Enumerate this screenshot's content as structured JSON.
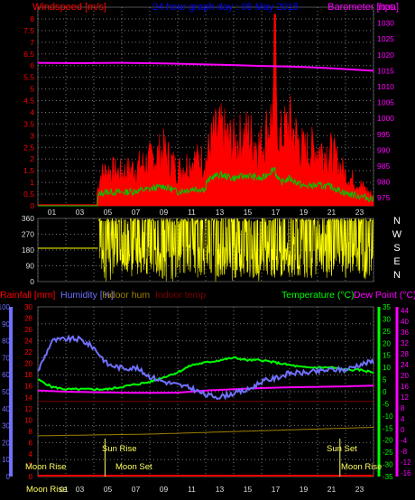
{
  "panel1": {
    "left_label": "Windspeed [m/s]",
    "title": "24 hour graph day : 05 May 2015",
    "right_label": "Barometer [hpa]"
  },
  "panel3": {
    "rain_label": "Rainfall [mm]",
    "humidity_label": "Humidity [%]",
    "indoor_hum_label": "Indoor hum",
    "indoor_temp_label": "Indoor temp",
    "temp_label": "Temperature (°C)",
    "dew_label": "Dew Point (°C)",
    "sun_rise_label": "Sun Rise",
    "sun_set_label": "Sun Set",
    "moon_rise_label": "Moon Rise",
    "moon_set_label": "Moon Set",
    "moon_rise_right_label": "Moon Rise",
    "bottom_moon_rise": "Moon Rise",
    "bottom_first_hour": "01"
  },
  "colors": {
    "wind": "#ff0000",
    "gust": "#00c800",
    "baro": "#ff00ff",
    "direction": "#ffff00",
    "humidity": "#7070ff",
    "temperature": "#00ff00",
    "dew": "#ff00ff",
    "indoor_hum": "#a08000",
    "indoor_temp": "#800000",
    "rain": "#ff0000",
    "sun": "#ffff60"
  },
  "chart_data": [
    {
      "type": "line",
      "title": "24 hour graph day : 05 May 2015",
      "x_ticks": [
        "01",
        "03",
        "05",
        "07",
        "09",
        "11",
        "13",
        "15",
        "17",
        "19",
        "21",
        "23"
      ],
      "xlim_hours": [
        0,
        24
      ],
      "ylabel": "Windspeed [m/s]",
      "ylim": [
        0,
        8.5
      ],
      "y_ticks": [
        "0",
        "0.5",
        "1",
        "1.5",
        "2",
        "2.5",
        "3",
        "3.5",
        "4",
        "4.5",
        "5",
        "5.5",
        "6",
        "6.5",
        "7",
        "7.5",
        "8"
      ],
      "y2label": "Barometer [hpa]",
      "y2lim": [
        972.5,
        1035
      ],
      "y2_ticks": [
        "975",
        "980",
        "985",
        "990",
        "995",
        "1000",
        "1005",
        "1010",
        "1015",
        "1020",
        "1025",
        "1030",
        "1035"
      ],
      "series": [
        {
          "name": "Windspeed",
          "x": [
            0,
            4,
            4.2,
            4.5,
            5,
            6,
            7,
            8,
            9,
            10,
            11,
            12,
            12.5,
            13,
            14,
            15,
            16,
            17,
            17.3,
            18,
            19,
            20,
            21,
            22,
            23,
            24
          ],
          "values": [
            0,
            0,
            0.5,
            1.3,
            1.5,
            1.4,
            1.6,
            1.9,
            2.3,
            1.5,
            1.9,
            1.9,
            2.8,
            3.1,
            2.6,
            3.0,
            2.5,
            4.2,
            2.8,
            3.4,
            2.3,
            2.4,
            2.2,
            1.3,
            0.9,
            0.4
          ]
        },
        {
          "name": "Barometer",
          "x": [
            0,
            3,
            6,
            9,
            12,
            14,
            16,
            18,
            20,
            22,
            24
          ],
          "values": [
            1017.5,
            1017.4,
            1017.5,
            1017.3,
            1017.0,
            1016.8,
            1016.5,
            1016.3,
            1016.0,
            1015.5,
            1015.0
          ]
        }
      ]
    },
    {
      "type": "scatter",
      "ylabel_right": [
        "N",
        "W",
        "S",
        "E",
        "N"
      ],
      "ylim": [
        0,
        360
      ],
      "y_ticks": [
        "0",
        "90",
        "180",
        "270",
        "360"
      ],
      "series": [
        {
          "name": "Wind direction",
          "x": [
            0,
            4.3,
            4.4,
            5,
            5.5
          ],
          "values": [
            190,
            190,
            340,
            90,
            0
          ]
        }
      ]
    },
    {
      "type": "line",
      "x_ticks": [
        "01",
        "03",
        "05",
        "07",
        "09",
        "11",
        "13",
        "15",
        "17",
        "19",
        "21",
        "23"
      ],
      "y_left_ticks_humidity": [
        "0",
        "10",
        "20",
        "30",
        "40",
        "50",
        "60",
        "70",
        "80",
        "90",
        "100"
      ],
      "y_left_ticks_rain": [
        "0",
        "2",
        "4",
        "6",
        "8",
        "10",
        "12",
        "14",
        "16",
        "18",
        "20",
        "22",
        "24",
        "26",
        "28",
        "30"
      ],
      "ylim_humidity": [
        0,
        100
      ],
      "y_temp_ticks": [
        "-35",
        "-30",
        "-25",
        "-20",
        "-15",
        "-10",
        "-5",
        "0",
        "5",
        "10",
        "15",
        "20",
        "25",
        "30",
        "35"
      ],
      "y_dew_ticks": [
        "-16",
        "-12",
        "-8",
        "-4",
        "0",
        "4",
        "8",
        "12",
        "16",
        "20",
        "24",
        "28",
        "32",
        "36",
        "40",
        "44"
      ],
      "ylim_temp": [
        -35,
        35
      ],
      "series": [
        {
          "name": "Humidity [%]",
          "x": [
            0,
            0.5,
            1,
            2,
            3,
            4,
            5,
            6,
            7,
            8,
            9,
            10,
            11,
            12,
            13,
            14,
            15,
            16,
            17,
            18,
            19,
            20,
            21,
            22,
            23,
            24
          ],
          "values": [
            62,
            71,
            80,
            81,
            81,
            76,
            66,
            64,
            64,
            59,
            56,
            54,
            52,
            48,
            47,
            49,
            51,
            56,
            58,
            61,
            61,
            62,
            63,
            63,
            66,
            68
          ]
        },
        {
          "name": "Temperature (°C)",
          "x": [
            0,
            1,
            2,
            3,
            4,
            5,
            6,
            7,
            8,
            9,
            10,
            11,
            12,
            13,
            14,
            15,
            16,
            17,
            18,
            19,
            20,
            21,
            22,
            23,
            24
          ],
          "values": [
            5,
            2,
            1,
            1,
            1,
            1,
            2,
            3,
            4,
            6,
            8,
            11,
            12,
            13,
            14,
            13,
            13,
            12,
            11,
            10,
            10,
            10,
            9,
            9,
            8
          ]
        },
        {
          "name": "Dew Point (°C)",
          "x": [
            0,
            2,
            4,
            6,
            8,
            10,
            12,
            14,
            16,
            18,
            20,
            22,
            24
          ],
          "values": [
            0.5,
            0,
            -0.2,
            -0.4,
            -0.5,
            -0.4,
            0.5,
            1,
            1.5,
            1.8,
            2,
            2.2,
            2.5
          ]
        },
        {
          "name": "Indoor hum",
          "x": [
            0,
            4,
            8,
            12,
            16,
            20,
            24
          ],
          "values": [
            24,
            24.5,
            25,
            26,
            27,
            28,
            29
          ]
        },
        {
          "name": "Indoor temp",
          "x": [
            0,
            24
          ],
          "values": [
            -4,
            -4
          ]
        },
        {
          "name": "Rainfall [mm]",
          "x": [
            0,
            24
          ],
          "values": [
            0,
            0
          ]
        }
      ],
      "annotations": [
        "Sun Rise",
        "Sun Set",
        "Moon Rise",
        "Moon Set"
      ]
    }
  ]
}
